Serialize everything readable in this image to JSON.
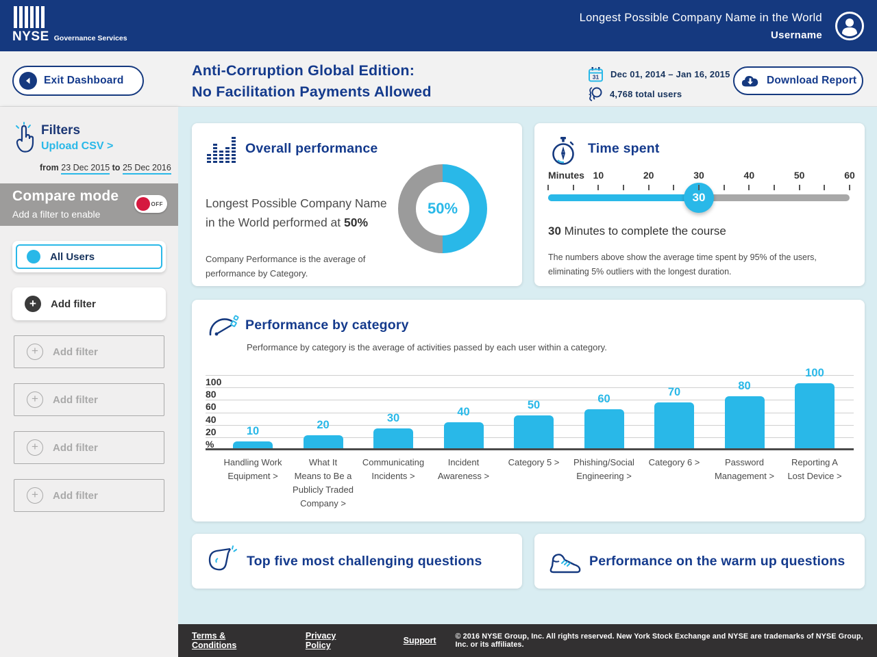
{
  "colors": {
    "header_navy": "#15397F",
    "navy_text": "#143A8C",
    "accent_cyan": "#29B8E8",
    "toggle_red": "#D5193F",
    "donut_gray": "#9B9B9B",
    "content_bg": "#D9EDF2",
    "footer_dark": "#323031"
  },
  "header": {
    "brand_name": "NYSE",
    "brand_suffix": "Governance Services",
    "company": "Longest Possible Company Name in the World",
    "username": "Username"
  },
  "subheader": {
    "exit_label": "Exit Dashboard",
    "title_line1": "Anti-Corruption Global Edition:",
    "title_line2": "No Facilitation Payments Allowed",
    "date_range": "Dec 01, 2014 – Jan 16, 2015",
    "total_users": "4,768 total users",
    "download_label": "Download Report"
  },
  "sidebar": {
    "filters_title": "Filters",
    "upload_csv": "Upload CSV >",
    "from_label": "from",
    "from_date": "23 Dec 2015",
    "to_label": "to",
    "to_date": "25 Dec 2016",
    "compare_title": "Compare mode",
    "compare_subtitle": "Add a filter to enable",
    "toggle_state": "OFF",
    "all_users_label": "All Users",
    "add_filter_label": "Add filter",
    "disabled_filters": [
      "Add filter",
      "Add filter",
      "Add filter",
      "Add filter"
    ]
  },
  "overall": {
    "title": "Overall performance",
    "text_prefix": "Longest Possible Company Name in the World performed at ",
    "percent_bold": "50%",
    "donut_percent": 50,
    "donut_label": "50%",
    "note": "Company Performance is the average of performance by Category."
  },
  "time_spent": {
    "title": "Time spent",
    "scale_labels": [
      "Minutes",
      "10",
      "20",
      "30",
      "40",
      "50",
      "60"
    ],
    "min": 0,
    "max": 60,
    "value": 30,
    "handle_label": "30",
    "summary_bold": "30",
    "summary_rest": " Minutes to complete the course",
    "note": "The numbers above show the average time spent by 95% of the users, eliminating 5% outliers with the longest duration."
  },
  "chart_data": {
    "type": "bar",
    "title": "Performance by category",
    "subtitle": "Performance by category  is the average of activities passed by each user within a category.",
    "ylabel": "%",
    "ylim": [
      0,
      100
    ],
    "yticks": [
      100,
      80,
      60,
      40,
      20
    ],
    "grid": true,
    "categories": [
      "Handling Work Equipment >",
      "What It Means to Be a Publicly Traded Company >",
      "Communicating Incidents >",
      "Incident Awareness >",
      "Category 5 >",
      "Phishing/Social Engineering >",
      "Category 6 >",
      "Password Management >",
      "Reporting A Lost Device >"
    ],
    "category_lines": [
      [
        "Handling Work",
        "Equipment >"
      ],
      [
        "What It",
        "Means to Be a",
        "Publicly Traded",
        "Company >"
      ],
      [
        "Communicating",
        "Incidents >"
      ],
      [
        "Incident",
        "Awareness >"
      ],
      [
        "Category 5 >"
      ],
      [
        "Phishing/Social",
        "Engineering >"
      ],
      [
        "Category 6 >"
      ],
      [
        "Password",
        "Management  >"
      ],
      [
        "Reporting A",
        "Lost Device >"
      ]
    ],
    "values": [
      10,
      20,
      30,
      40,
      50,
      60,
      70,
      80,
      100
    ],
    "bar_color": "#29B8E8"
  },
  "cards": {
    "challenging_title": "Top five most challenging questions",
    "warmup_title": "Performance on the warm up questions"
  },
  "footer": {
    "links": [
      "Terms & Conditions",
      "Privacy Policy",
      "Support"
    ],
    "copyright": "© 2016 NYSE Group, Inc. All rights reserved. New York Stock Exchange and NYSE are trademarks of NYSE Group, Inc. or its affiliates."
  }
}
